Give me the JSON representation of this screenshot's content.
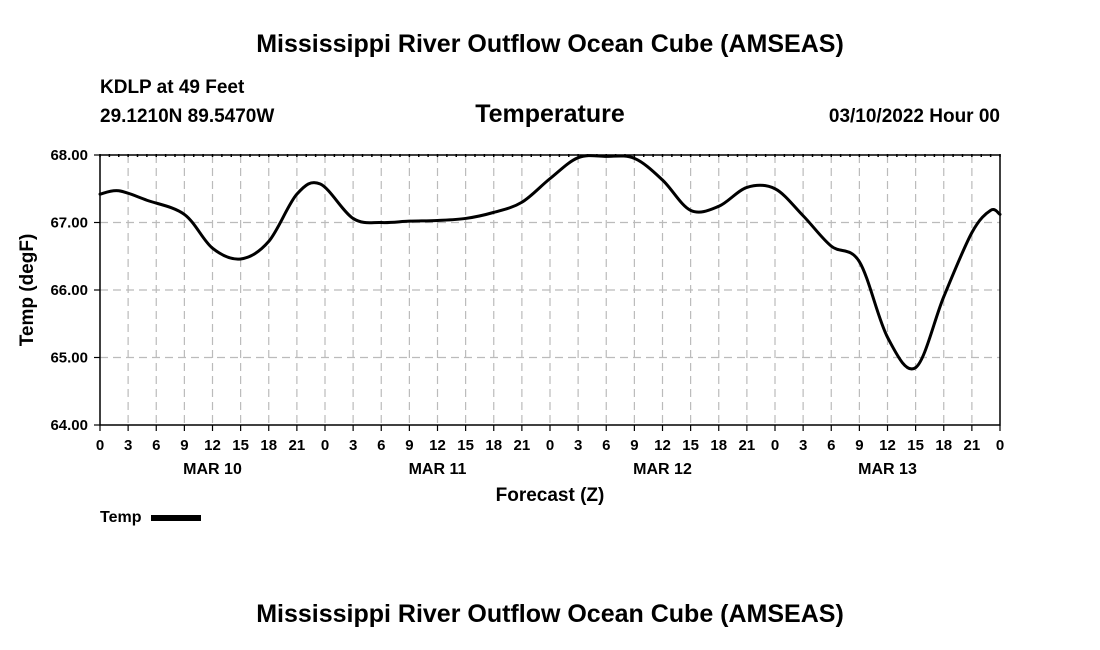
{
  "header": {
    "title": "Mississippi River Outflow Ocean Cube (AMSEAS)",
    "station": "KDLP at 49 Feet",
    "coords": "29.1210N  89.5470W",
    "subtitle": "Temperature",
    "datetime": "03/10/2022 Hour 00"
  },
  "footer": {
    "title": "Mississippi River Outflow Ocean Cube (AMSEAS)"
  },
  "legend": {
    "label": "Temp"
  },
  "chart_data": {
    "type": "line",
    "title": "Temperature",
    "xlabel": "Forecast (Z)",
    "ylabel": "Temp (degF)",
    "xlim": [
      0,
      96
    ],
    "ylim": [
      64,
      68
    ],
    "grid": true,
    "x_tick_values": [
      0,
      3,
      6,
      9,
      12,
      15,
      18,
      21,
      24,
      27,
      30,
      33,
      36,
      39,
      42,
      45,
      48,
      51,
      54,
      57,
      60,
      63,
      66,
      69,
      72,
      75,
      78,
      81,
      84,
      87,
      90,
      93,
      96
    ],
    "x_tick_labels": [
      "0",
      "3",
      "6",
      "9",
      "12",
      "15",
      "18",
      "21",
      "0",
      "3",
      "6",
      "9",
      "12",
      "15",
      "18",
      "21",
      "0",
      "3",
      "6",
      "9",
      "12",
      "15",
      "18",
      "21",
      "0",
      "3",
      "6",
      "9",
      "12",
      "15",
      "18",
      "21",
      "0"
    ],
    "day_labels": [
      {
        "x": 12,
        "label": "MAR 10"
      },
      {
        "x": 36,
        "label": "MAR 11"
      },
      {
        "x": 60,
        "label": "MAR 12"
      },
      {
        "x": 84,
        "label": "MAR 13"
      }
    ],
    "y_ticks": [
      64,
      65,
      66,
      67,
      68
    ],
    "y_tick_labels": [
      "64.00",
      "65.00",
      "66.00",
      "67.00",
      "68.00"
    ],
    "series": [
      {
        "name": "Temp",
        "x": [
          0,
          2,
          5,
          9,
          12,
          15,
          18,
          21,
          23.5,
          27,
          30,
          33,
          36,
          39,
          42,
          45,
          48,
          51,
          54,
          57,
          60,
          63,
          66,
          69,
          72,
          75,
          78,
          81,
          84,
          87,
          90,
          93,
          95,
          96
        ],
        "y": [
          67.42,
          67.47,
          67.33,
          67.12,
          66.62,
          66.46,
          66.72,
          67.42,
          67.57,
          67.06,
          67.0,
          67.02,
          67.03,
          67.06,
          67.15,
          67.3,
          67.65,
          67.96,
          67.98,
          67.95,
          67.63,
          67.18,
          67.24,
          67.52,
          67.5,
          67.1,
          66.65,
          66.42,
          65.3,
          64.85,
          65.9,
          66.85,
          67.18,
          67.12
        ]
      }
    ]
  }
}
